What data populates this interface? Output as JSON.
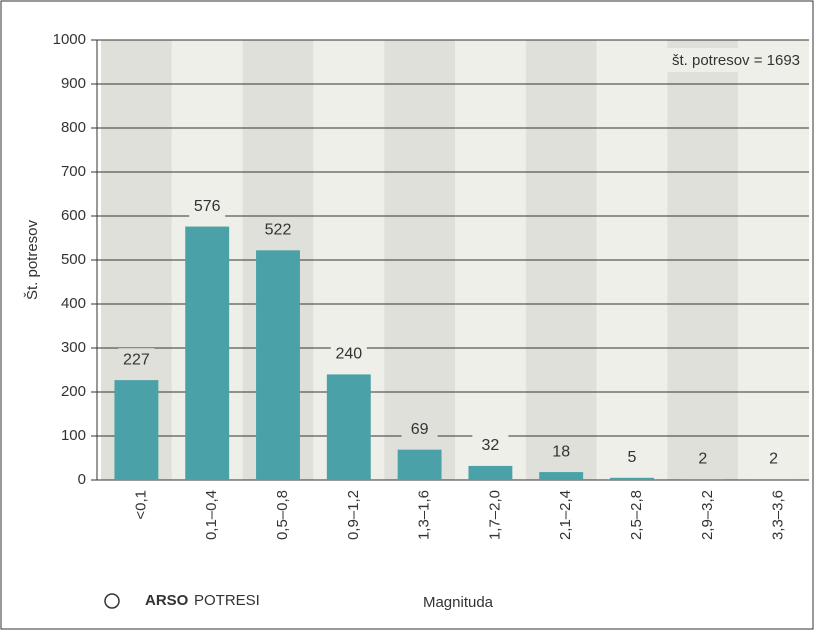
{
  "chart_data": {
    "type": "bar",
    "categories": [
      "<0,1",
      "0,1–0,4",
      "0,5–0,8",
      "0,9–1,2",
      "1,3–1,6",
      "1,7–2,0",
      "2,1–2,4",
      "2,5–2,8",
      "2,9–3,2",
      "3,3–3,6"
    ],
    "values": [
      227,
      576,
      522,
      240,
      69,
      32,
      18,
      5,
      2,
      2
    ],
    "color": "#4aa1a7",
    "ylim": [
      0,
      1000
    ],
    "yticks": [
      0,
      100,
      200,
      300,
      400,
      500,
      600,
      700,
      800,
      900,
      1000
    ],
    "grid": true,
    "ylabel": "Št. potresov",
    "xlabel": "Magnituda",
    "annotation": "št. potresov = 1693",
    "logo": {
      "bold": "ARSO",
      "text": "POTRESI"
    }
  }
}
